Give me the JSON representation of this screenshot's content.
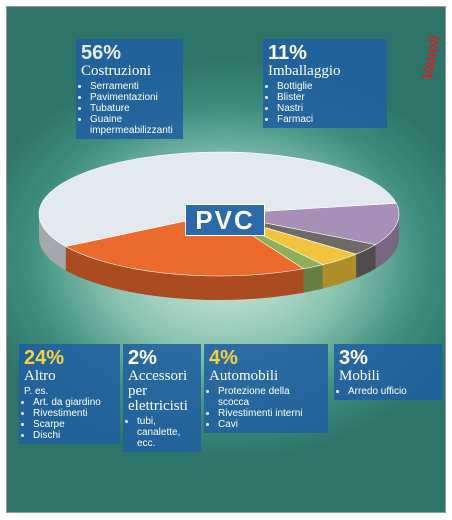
{
  "chart_data": {
    "type": "pie",
    "title": "PVC",
    "signature": "Vanoli",
    "categories": [
      "Imballaggio",
      "Mobili",
      "Automobili",
      "Accessori per elettricisti",
      "Altro",
      "Costruzioni"
    ],
    "values": [
      11,
      3,
      4,
      2,
      24,
      56
    ],
    "value_labels": [
      "11%",
      "3%",
      "4%",
      "2%",
      "24%",
      "56%"
    ],
    "colors": [
      "#a78fb8",
      "#6e6a66",
      "#f2c43c",
      "#8fae5a",
      "#ec6a2c",
      "#e4e8ef"
    ],
    "notes": [
      null,
      null,
      null,
      null,
      "P. es.",
      null
    ],
    "details": [
      [
        "Bottiglie",
        "Blister",
        "Nastri",
        "Farmaci"
      ],
      [
        "Arredo ufficio"
      ],
      [
        "Protezione della scocca",
        "Rivestimenti interni",
        "Cavi"
      ],
      [
        "tubi, canalette, ecc."
      ],
      [
        "Art. da giardino",
        "Rivestimenti",
        "Scarpe",
        "Dischi"
      ],
      [
        "Serramenti",
        "Pavimentazioni",
        "Tubature",
        "Guaine impermeabilizzanti"
      ]
    ]
  }
}
